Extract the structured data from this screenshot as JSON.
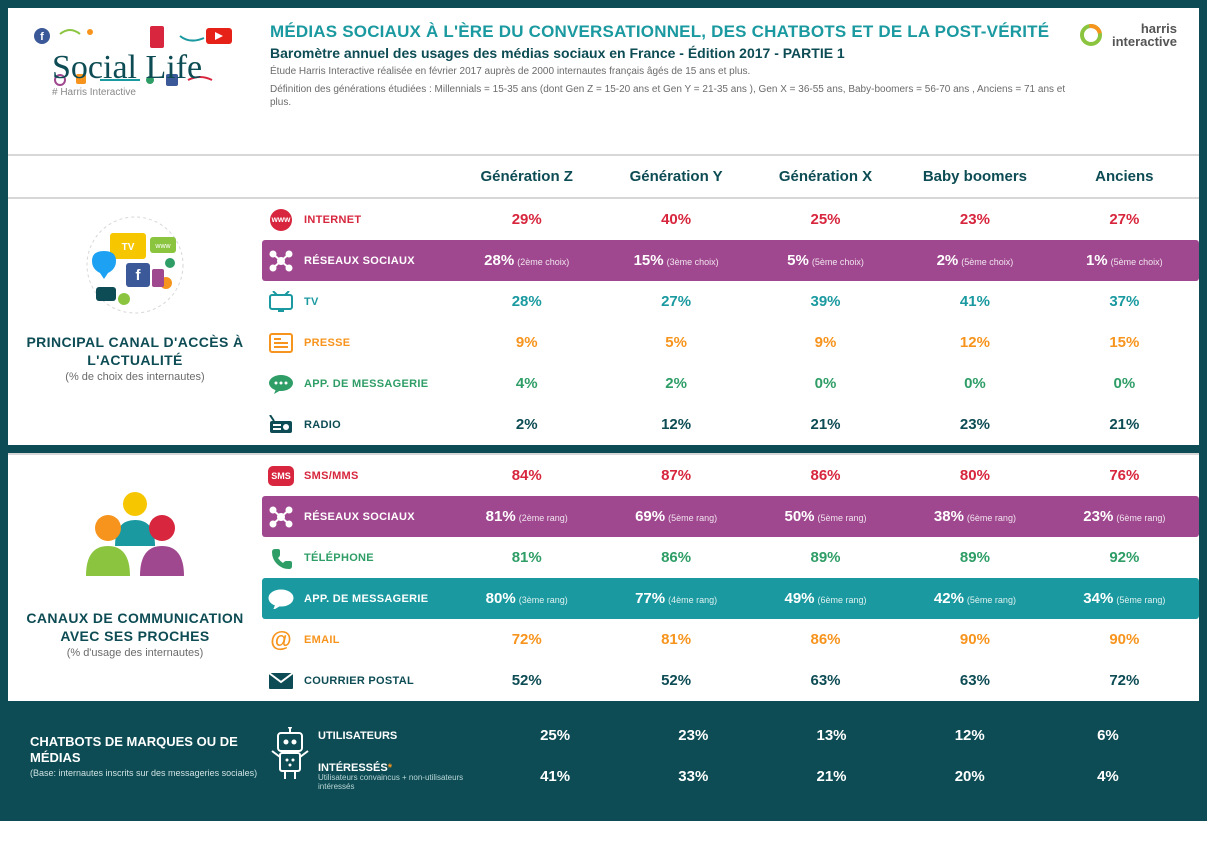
{
  "brand": {
    "logo": "Social Life",
    "tagline": "# Harris Interactive"
  },
  "harris": {
    "name": "harris",
    "name2": "interactive"
  },
  "header": {
    "title": "MÉDIAS SOCIAUX À L'ÈRE DU CONVERSATIONNEL, DES CHATBOTS ET DE LA POST-VÉRITÉ",
    "subtitle": "Baromètre annuel des usages des médias sociaux en France - Édition 2017 - PARTIE 1",
    "desc1": "Étude Harris Interactive réalisée en février 2017 auprès de 2000 internautes français âgés de 15 ans et plus.",
    "desc2": "Définition des générations étudiées : Millennials = 15-35 ans (dont Gen Z = 15-20 ans et Gen Y = 21-35 ans ), Gen X = 36-55 ans, Baby-boomers = 56-70 ans , Anciens = 71 ans et plus."
  },
  "columns": [
    "Génération Z",
    "Génération Y",
    "Génération X",
    "Baby boomers",
    "Anciens"
  ],
  "column_emphasis_letters": [
    "Z",
    "Y",
    "X",
    "",
    ""
  ],
  "section1": {
    "title": "PRINCIPAL CANAL D'ACCÈS À L'ACTUALITÉ",
    "subtitle": "(% de choix des internautes)",
    "rows": [
      {
        "icon": "globe",
        "color": "#d7263d",
        "label": "INTERNET",
        "values": [
          "29%",
          "40%",
          "25%",
          "23%",
          "27%"
        ],
        "notes": [
          "",
          "",
          "",
          "",
          ""
        ],
        "highlight": null
      },
      {
        "icon": "network",
        "color": "#ffffff",
        "label": "RÉSEAUX SOCIAUX",
        "values": [
          "28%",
          "15%",
          "5%",
          "2%",
          "1%"
        ],
        "notes": [
          "(2ème choix)",
          "(3ème choix)",
          "(5ème choix)",
          "(5ème choix)",
          "(5ème choix)"
        ],
        "highlight": "#a0488f"
      },
      {
        "icon": "tv",
        "color": "#1a9aa0",
        "label": "TV",
        "values": [
          "28%",
          "27%",
          "39%",
          "41%",
          "37%"
        ],
        "notes": [
          "",
          "",
          "",
          "",
          ""
        ],
        "highlight": null
      },
      {
        "icon": "news",
        "color": "#f7941d",
        "label": "PRESSE",
        "values": [
          "9%",
          "5%",
          "9%",
          "12%",
          "15%"
        ],
        "notes": [
          "",
          "",
          "",
          "",
          ""
        ],
        "highlight": null
      },
      {
        "icon": "bubble",
        "color": "#2e9d66",
        "label": "APP. DE MESSAGERIE",
        "values": [
          "4%",
          "2%",
          "0%",
          "0%",
          "0%"
        ],
        "notes": [
          "",
          "",
          "",
          "",
          ""
        ],
        "highlight": null
      },
      {
        "icon": "radio",
        "color": "#0d4c54",
        "label": "RADIO",
        "values": [
          "2%",
          "12%",
          "21%",
          "23%",
          "21%"
        ],
        "notes": [
          "",
          "",
          "",
          "",
          ""
        ],
        "highlight": null
      }
    ]
  },
  "section2": {
    "title": "CANAUX DE COMMUNICATION AVEC SES PROCHES",
    "subtitle": "(% d'usage des internautes)",
    "rows": [
      {
        "icon": "sms",
        "color": "#d7263d",
        "label": "SMS/MMS",
        "values": [
          "84%",
          "87%",
          "86%",
          "80%",
          "76%"
        ],
        "notes": [
          "",
          "",
          "",
          "",
          ""
        ],
        "highlight": null
      },
      {
        "icon": "network",
        "color": "#ffffff",
        "label": "RÉSEAUX SOCIAUX",
        "values": [
          "81%",
          "69%",
          "50%",
          "38%",
          "23%"
        ],
        "notes": [
          "(2ème rang)",
          "(5ème rang)",
          "(5ème rang)",
          "(6ème rang)",
          "(6ème rang)"
        ],
        "highlight": "#a0488f"
      },
      {
        "icon": "phone",
        "color": "#2e9d66",
        "label": "TÉLÉPHONE",
        "values": [
          "81%",
          "86%",
          "89%",
          "89%",
          "92%"
        ],
        "notes": [
          "",
          "",
          "",
          "",
          ""
        ],
        "highlight": null
      },
      {
        "icon": "bubble",
        "color": "#ffffff",
        "label": "APP. DE MESSAGERIE",
        "values": [
          "80%",
          "77%",
          "49%",
          "42%",
          "34%"
        ],
        "notes": [
          "(3ème rang)",
          "(4ème rang)",
          "(6ème rang)",
          "(5ème rang)",
          "(5ème rang)"
        ],
        "highlight": "#1a9aa0"
      },
      {
        "icon": "at",
        "color": "#f7941d",
        "label": "EMAIL",
        "values": [
          "72%",
          "81%",
          "86%",
          "90%",
          "90%"
        ],
        "notes": [
          "",
          "",
          "",
          "",
          ""
        ],
        "highlight": null
      },
      {
        "icon": "mail",
        "color": "#0d4c54",
        "label": "COURRIER POSTAL",
        "values": [
          "52%",
          "52%",
          "63%",
          "63%",
          "72%"
        ],
        "notes": [
          "",
          "",
          "",
          "",
          ""
        ],
        "highlight": null
      }
    ]
  },
  "chatbots": {
    "title": "CHATBOTS DE MARQUES OU DE MÉDIAS",
    "subtitle": "(Base: internautes inscrits sur des messageries sociales)",
    "rows": [
      {
        "label": "UTILISATEURS",
        "sublabel": "",
        "values": [
          "25%",
          "23%",
          "13%",
          "12%",
          "6%"
        ]
      },
      {
        "label": "INTÉRESSÉS",
        "star": "*",
        "sublabel": "Utilisateurs convaincus + non-utilisateurs intéressés",
        "values": [
          "41%",
          "33%",
          "21%",
          "20%",
          "4%"
        ]
      }
    ]
  },
  "palette": {
    "teal": "#0d4c54",
    "cyan": "#1a9aa0",
    "purple": "#a0488f",
    "red": "#d7263d",
    "orange": "#f7941d",
    "green": "#2e9d66",
    "yellow": "#f6c700",
    "greenlime": "#8bc53f",
    "grey": "#6b6b6b"
  }
}
